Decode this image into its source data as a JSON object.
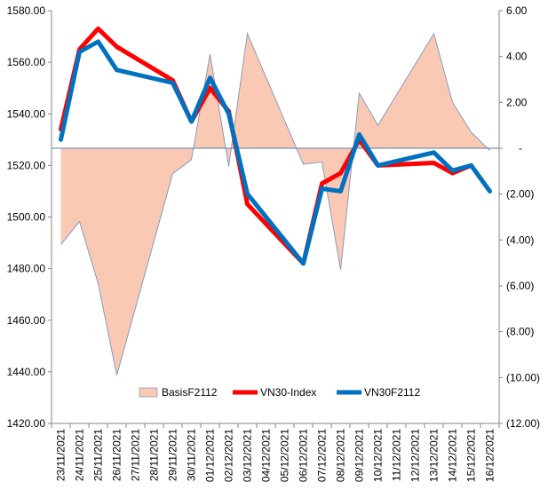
{
  "chart_data": {
    "type": "line",
    "title": "",
    "xlabel": "",
    "ylabel": "",
    "ylabel_right": "",
    "categories": [
      "23/11/2021",
      "24/11/2021",
      "25/11/2021",
      "26/11/2021",
      "27/11/2021",
      "28/11/2021",
      "29/11/2021",
      "30/11/2021",
      "01/12/2021",
      "02/12/2021",
      "03/12/2021",
      "04/12/2021",
      "05/12/2021",
      "06/12/2021",
      "07/12/2021",
      "08/12/2021",
      "09/12/2021",
      "10/12/2021",
      "11/12/2021",
      "12/12/2021",
      "13/12/2021",
      "14/12/2021",
      "15/12/2021",
      "16/12/2021"
    ],
    "left_axis": {
      "min": 1420,
      "max": 1580,
      "step": 20,
      "tick_labels": [
        "1420.00",
        "1440.00",
        "1460.00",
        "1480.00",
        "1500.00",
        "1520.00",
        "1540.00",
        "1560.00",
        "1580.00"
      ]
    },
    "right_axis": {
      "min": -12,
      "max": 6,
      "step": 2,
      "tick_labels": [
        "(12.00)",
        "(10.00)",
        "(8.00)",
        "(6.00)",
        "(4.00)",
        "(2.00)",
        "-",
        "2.00",
        "4.00",
        "6.00"
      ]
    },
    "series": [
      {
        "name": "BasisF2112",
        "type": "area",
        "axis": "right",
        "color": "#f9c9b3",
        "stroke": "#8a9bbd",
        "x": [
          0,
          1,
          2,
          3,
          6,
          7,
          8,
          9,
          10,
          13,
          14,
          15,
          16,
          17,
          20,
          21,
          22,
          23
        ],
        "values": [
          -4.2,
          -3.2,
          -5.9,
          -9.9,
          -1.1,
          -0.5,
          4.1,
          -0.8,
          5.0,
          -0.7,
          -0.6,
          -5.3,
          2.4,
          1.0,
          5.0,
          2.0,
          0.7,
          -0.1
        ]
      },
      {
        "name": "VN30-Index",
        "type": "line",
        "axis": "left",
        "color": "#ff0000",
        "x": [
          0,
          1,
          2,
          3,
          6,
          7,
          8,
          9,
          10,
          13,
          14,
          15,
          16,
          17,
          20,
          21,
          22
        ],
        "values": [
          1534,
          1565,
          1573,
          1566,
          1553,
          1537,
          1550,
          1541,
          1505,
          1482,
          1513,
          1517,
          1530,
          1520,
          1521,
          1517,
          1520
        ]
      },
      {
        "name": "VN30F2112",
        "type": "line",
        "axis": "left",
        "color": "#0070c0",
        "x": [
          0,
          1,
          2,
          3,
          6,
          7,
          8,
          9,
          10,
          13,
          14,
          15,
          16,
          17,
          20,
          21,
          22,
          23
        ],
        "values": [
          1530,
          1564,
          1568,
          1557,
          1552,
          1537,
          1554,
          1540,
          1509,
          1482,
          1511,
          1510,
          1532,
          1520,
          1525,
          1518,
          1520,
          1510
        ]
      }
    ],
    "legend_position": "bottom-right-inside",
    "grid": false
  }
}
